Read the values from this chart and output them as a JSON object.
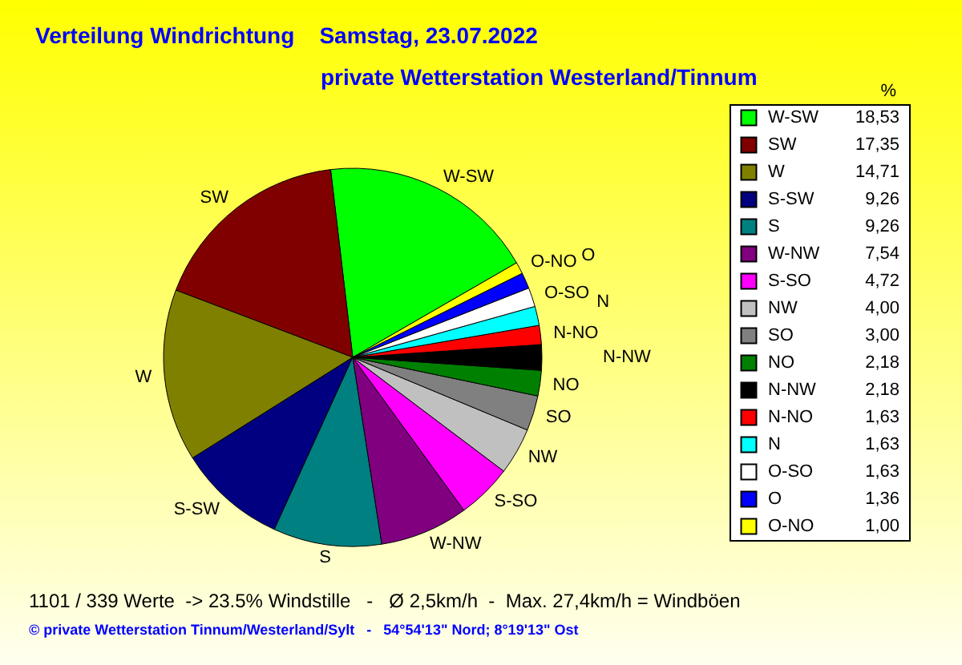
{
  "chart_data": {
    "type": "pie",
    "title": "Verteilung Windrichtung    Samstag, 23.07.2022",
    "subtitle": "private Wetterstation Westerland/Tinnum",
    "legend_title": "%",
    "legend": "right",
    "categories": [
      "W-SW",
      "SW",
      "W",
      "S-SW",
      "S",
      "W-NW",
      "S-SO",
      "NW",
      "SO",
      "NO",
      "N-NW",
      "N-NO",
      "N",
      "O-SO",
      "O",
      "O-NO"
    ],
    "values": [
      18.53,
      17.35,
      14.71,
      9.26,
      9.26,
      7.54,
      4.72,
      4.0,
      3.0,
      2.18,
      2.18,
      1.63,
      1.63,
      1.63,
      1.36,
      1.0
    ],
    "value_labels": [
      "18,53",
      "17,35",
      "14,71",
      "9,26",
      "9,26",
      "7,54",
      "4,72",
      "4,00",
      "3,00",
      "2,18",
      "2,18",
      "1,63",
      "1,63",
      "1,63",
      "1,36",
      "1,00"
    ],
    "colors": [
      "#00ff00",
      "#800000",
      "#808000",
      "#000080",
      "#008080",
      "#800080",
      "#ff00ff",
      "#c0c0c0",
      "#808080",
      "#008000",
      "#000000",
      "#ff0000",
      "#00ffff",
      "#ffffff",
      "#0000ff",
      "#ffff00"
    ],
    "annotations": [
      "1101 / 339 Werte  -> 23.5% Windstille   -   Ø 2,5km/h  -  Max. 27,4km/h = Windböen",
      "© private Wetterstation Tinnum/Westerland/Sylt   -   54°54'13\" Nord; 8°19'13\" Ost"
    ]
  }
}
